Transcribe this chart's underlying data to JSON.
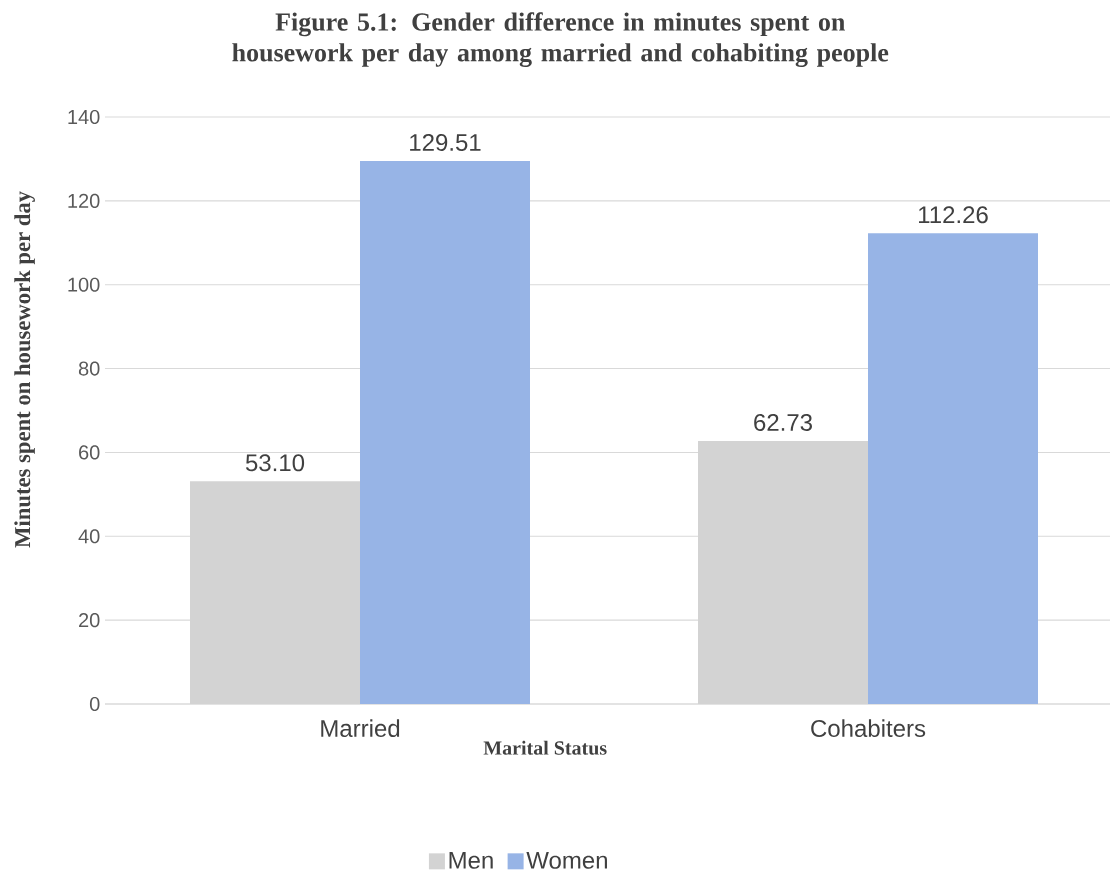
{
  "chart_data": {
    "type": "bar",
    "title": "Figure 5.1: Gender difference in minutes spent on  housework per day among married and cohabiting people",
    "xlabel": "Marital Status",
    "ylabel": "Minutes spent on  housework per day",
    "categories": [
      "Married",
      "Cohabiters"
    ],
    "series": [
      {
        "name": "Men",
        "color": "#d3d3d3",
        "values": [
          53.1,
          62.73
        ],
        "value_labels": [
          "53.10",
          "62.73"
        ]
      },
      {
        "name": "Women",
        "color": "#97b4e6",
        "values": [
          129.51,
          112.26
        ],
        "value_labels": [
          "129.51",
          "112.26"
        ]
      }
    ],
    "ylim": [
      0,
      140
    ],
    "yticks": [
      0,
      20,
      40,
      60,
      80,
      100,
      120,
      140
    ],
    "grid": "y",
    "legend": "bottom"
  }
}
